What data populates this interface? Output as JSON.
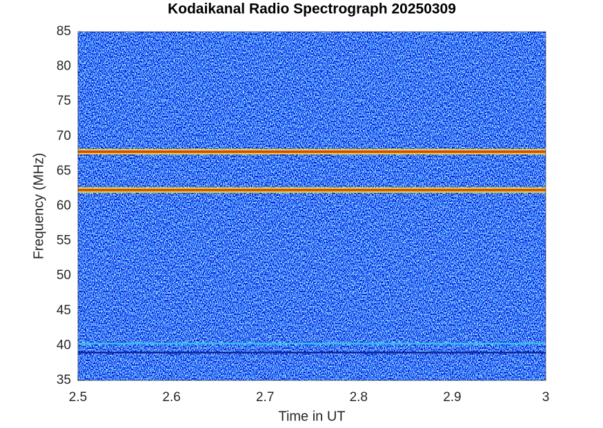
{
  "chart_data": {
    "type": "spectrogram",
    "title": "Kodaikanal Radio Spectrograph  20250309",
    "x_label": "Time in UT",
    "y_label": "Frequency (MHz)",
    "xlim": [
      2.5,
      3
    ],
    "ylim": [
      35,
      85
    ],
    "xticks": [
      {
        "value": 2.5,
        "label": "2.5"
      },
      {
        "value": 2.6,
        "label": "2.6"
      },
      {
        "value": 2.7,
        "label": "2.7"
      },
      {
        "value": 2.8,
        "label": "2.8"
      },
      {
        "value": 2.9,
        "label": "2.9"
      },
      {
        "value": 3,
        "label": "3"
      }
    ],
    "yticks": [
      35,
      40,
      45,
      50,
      55,
      60,
      65,
      70,
      75,
      80,
      85
    ],
    "lines": [
      {
        "y": 67.8,
        "color": "#d8281c"
      },
      {
        "y": 62.3,
        "color": "#cc3a14"
      },
      {
        "y": 40.3,
        "color": "#38c8e8"
      },
      {
        "y": 39.0,
        "color": "#0a1a8c"
      }
    ]
  }
}
